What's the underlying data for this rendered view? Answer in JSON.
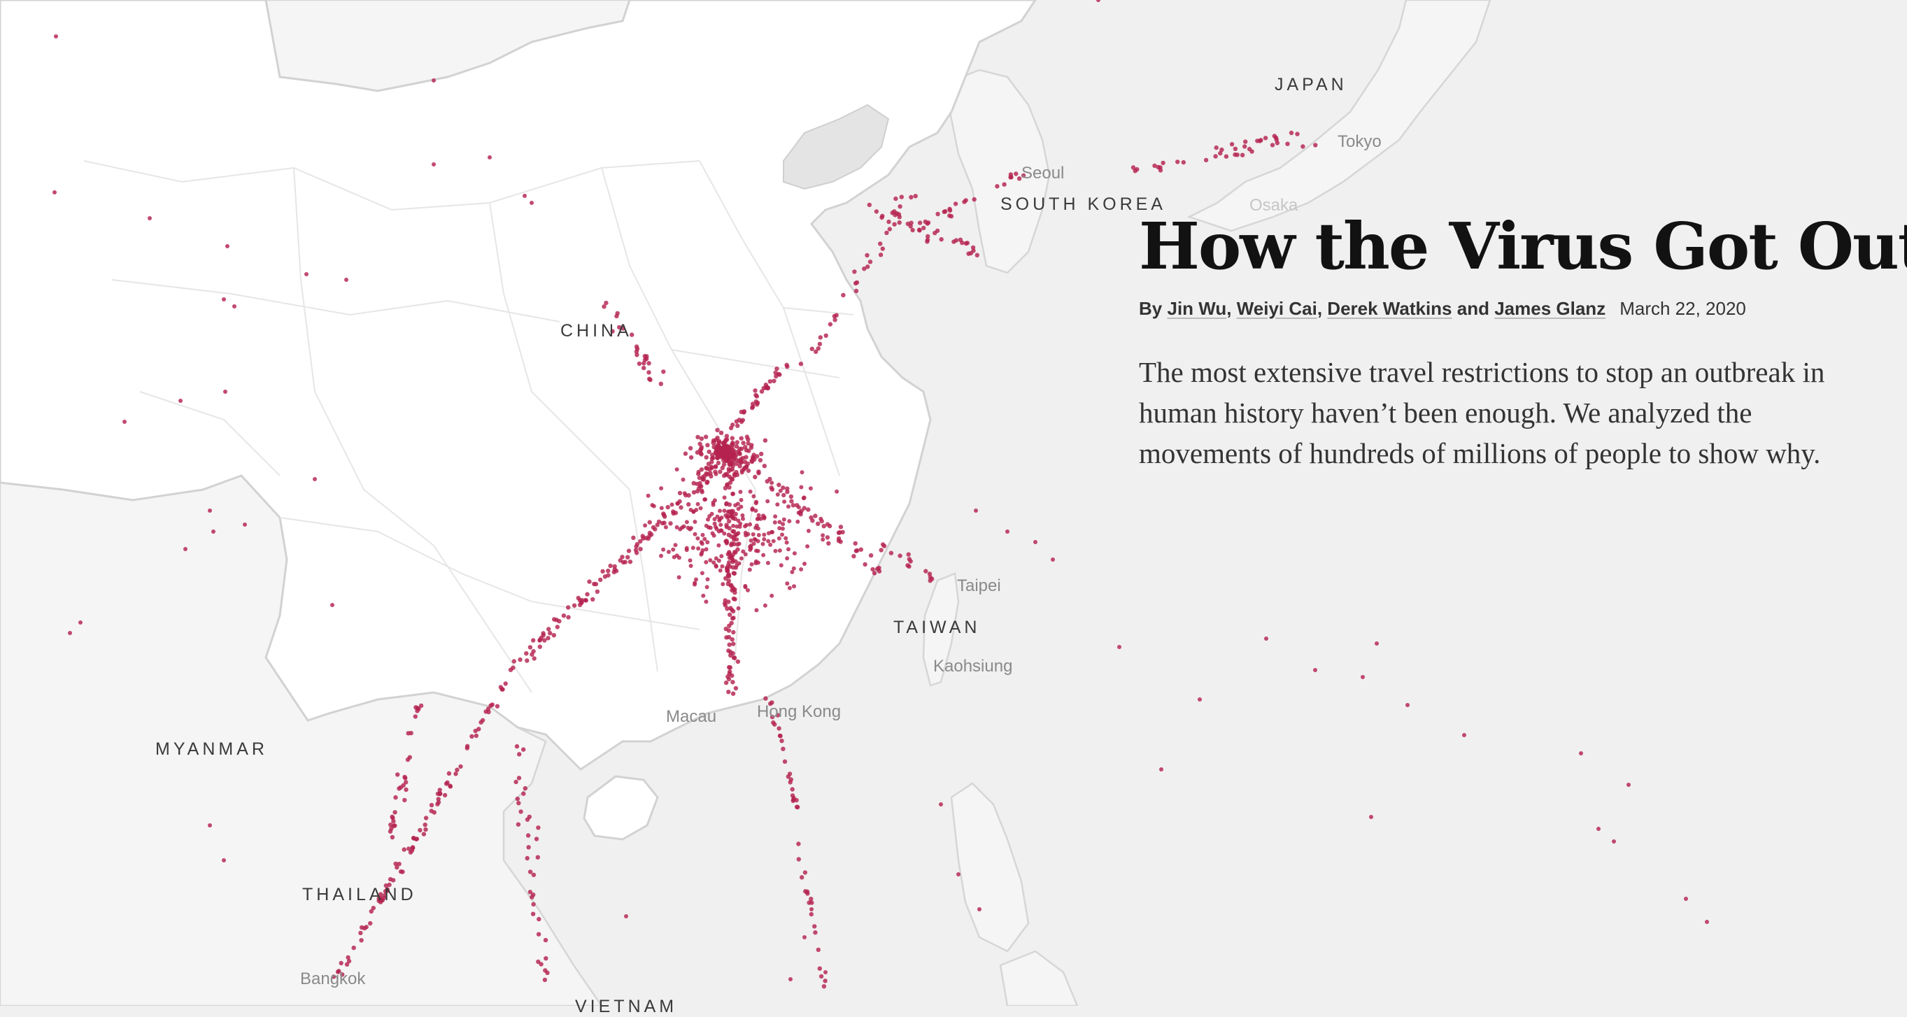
{
  "article": {
    "headline": "How the Virus Got Out",
    "byline": {
      "prefix": "By",
      "authors": [
        "Jin Wu",
        "Weiyi Cai",
        "Derek Watkins",
        "James Glanz"
      ],
      "sep": ",",
      "conj": "and",
      "date": "March 22, 2020"
    },
    "summary": "The most extensive travel restrictions to stop an outbreak in human history haven’t been enough. We analyzed the movements of hundreds of millions of people to show why."
  },
  "map": {
    "country_labels": {
      "japan": "JAPAN",
      "china": "CHINA",
      "south_korea": "SOUTH KOREA",
      "taiwan": "TAIWAN",
      "myanmar": "MYANMAR",
      "thailand": "THAILAND",
      "vietnam": "VIETNAM"
    },
    "city_labels": {
      "tokyo": "Tokyo",
      "seoul": "Seoul",
      "osaka": "Osaka",
      "taipei": "Taipei",
      "kaohsiung": "Kaohsiung",
      "macau": "Macau",
      "hong_kong": "Hong Kong",
      "bangkok": "Bangkok"
    },
    "dot_color": "#b4224f",
    "land_color": "#ffffff",
    "sea_color": "#f0f0f0"
  }
}
